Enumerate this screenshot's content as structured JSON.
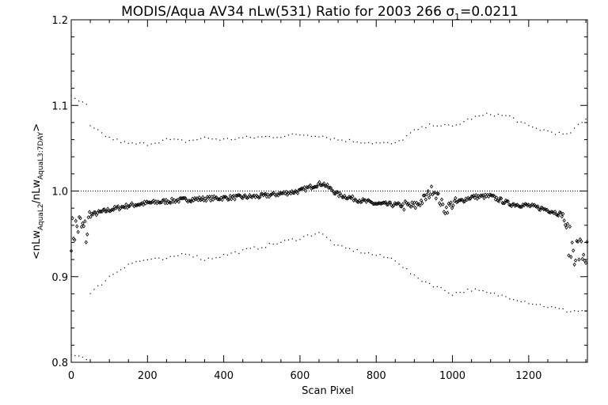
{
  "chart_data": {
    "type": "scatter",
    "title_main": "MODIS/Aqua AV34 nLw(531) Ratio for 2003 266 ",
    "title_sigma": "σ",
    "title_sigma_sub": "1",
    "title_tail": "=0.0211",
    "xlabel": "Scan Pixel",
    "ylabel": {
      "part1": "<nLw",
      "sub1": "AquaL2",
      "part2": "/nLw",
      "sub2": "AquaL3:7DAY",
      "part3": ">"
    },
    "xlim": [
      0,
      1354
    ],
    "ylim": [
      0.8,
      1.2
    ],
    "x_ticks": [
      0,
      200,
      400,
      600,
      800,
      1000,
      1200
    ],
    "y_ticks": [
      0.8,
      0.9,
      1.0,
      1.1,
      1.2
    ],
    "x_tick_labels": [
      "0",
      "200",
      "400",
      "600",
      "800",
      "1000",
      "1200"
    ],
    "y_tick_labels": [
      "0.8",
      "0.9",
      "1.0",
      "1.1",
      "1.2"
    ],
    "reference_line": 1.0,
    "series": [
      {
        "role": "mean",
        "marker": "diamond",
        "x": [
          0,
          20,
          40,
          50,
          100,
          150,
          200,
          250,
          300,
          350,
          400,
          450,
          500,
          550,
          600,
          640,
          660,
          700,
          750,
          800,
          850,
          900,
          930,
          950,
          980,
          1000,
          1050,
          1100,
          1150,
          1200,
          1250,
          1290,
          1310,
          1354
        ],
        "y": [
          0.95,
          0.96,
          0.95,
          0.972,
          0.978,
          0.983,
          0.986,
          0.988,
          0.99,
          0.991,
          0.992,
          0.993,
          0.994,
          0.997,
          1.0,
          1.007,
          1.009,
          0.996,
          0.99,
          0.985,
          0.984,
          0.982,
          0.992,
          1.003,
          0.978,
          0.985,
          0.993,
          0.994,
          0.985,
          0.983,
          0.978,
          0.972,
          0.935,
          0.925
        ]
      },
      {
        "role": "upper",
        "marker": "dot",
        "x": [
          0,
          40,
          50,
          100,
          150,
          200,
          250,
          300,
          350,
          400,
          450,
          500,
          550,
          600,
          650,
          700,
          750,
          800,
          850,
          900,
          950,
          1000,
          1050,
          1100,
          1150,
          1200,
          1250,
          1300,
          1354
        ],
        "y": [
          1.11,
          1.1,
          1.075,
          1.062,
          1.055,
          1.055,
          1.06,
          1.058,
          1.062,
          1.06,
          1.062,
          1.063,
          1.064,
          1.066,
          1.065,
          1.06,
          1.058,
          1.056,
          1.055,
          1.07,
          1.078,
          1.075,
          1.085,
          1.09,
          1.087,
          1.075,
          1.07,
          1.065,
          1.085
        ]
      },
      {
        "role": "lower",
        "marker": "dot",
        "x": [
          0,
          40,
          50,
          100,
          150,
          200,
          250,
          300,
          350,
          400,
          450,
          500,
          550,
          600,
          650,
          700,
          750,
          800,
          850,
          900,
          950,
          1000,
          1050,
          1100,
          1150,
          1200,
          1250,
          1300,
          1354
        ],
        "y": [
          0.81,
          0.805,
          0.88,
          0.9,
          0.915,
          0.92,
          0.92,
          0.928,
          0.92,
          0.925,
          0.93,
          0.935,
          0.94,
          0.945,
          0.952,
          0.935,
          0.93,
          0.925,
          0.92,
          0.9,
          0.89,
          0.88,
          0.885,
          0.88,
          0.876,
          0.87,
          0.865,
          0.86,
          0.86
        ]
      }
    ]
  }
}
